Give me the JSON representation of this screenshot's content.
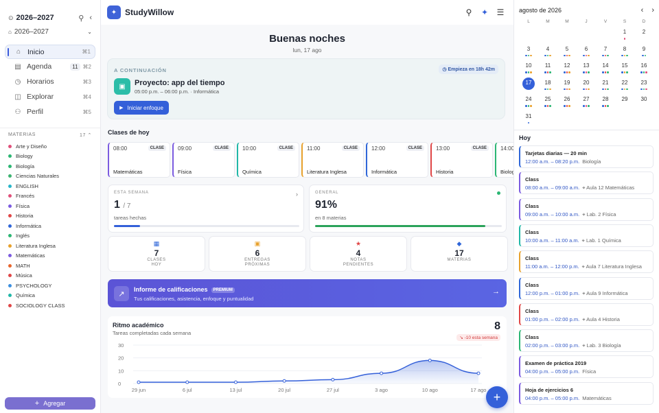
{
  "sidebar": {
    "year_title": "2026–2027",
    "year_select": "2026–2027",
    "nav": [
      {
        "label": "Inicio",
        "shortcut": "⌘1",
        "badge": ""
      },
      {
        "label": "Agenda",
        "shortcut": "⌘2",
        "badge": "11"
      },
      {
        "label": "Horarios",
        "shortcut": "⌘3",
        "badge": ""
      },
      {
        "label": "Explorar",
        "shortcut": "⌘4",
        "badge": ""
      },
      {
        "label": "Perfil",
        "shortcut": "⌘5",
        "badge": ""
      }
    ],
    "materias_label": "MATERIAS",
    "materias_count": "17",
    "materias": [
      {
        "name": "Arte y Diseño",
        "color": "#e0507a"
      },
      {
        "name": "Biology",
        "color": "#2bb673"
      },
      {
        "name": "Biología",
        "color": "#2bb673"
      },
      {
        "name": "Ciencias Naturales",
        "color": "#3cb371"
      },
      {
        "name": "ENGLISH",
        "color": "#27b5c9"
      },
      {
        "name": "Francés",
        "color": "#e0507a"
      },
      {
        "name": "Física",
        "color": "#7b5be0"
      },
      {
        "name": "Historia",
        "color": "#e04646"
      },
      {
        "name": "Informática",
        "color": "#2f66d8"
      },
      {
        "name": "Inglés",
        "color": "#2bb673"
      },
      {
        "name": "Literatura Inglesa",
        "color": "#e8a12c"
      },
      {
        "name": "Matemáticas",
        "color": "#7b5be0"
      },
      {
        "name": "MATH",
        "color": "#e8652c"
      },
      {
        "name": "Música",
        "color": "#e04646"
      },
      {
        "name": "PSYCHOLOGY",
        "color": "#3b8fe0"
      },
      {
        "name": "Química",
        "color": "#20b7a7"
      },
      {
        "name": "SOCIOLOGY CLASS",
        "color": "#e04646"
      }
    ],
    "add_label": "Agregar"
  },
  "header": {
    "brand": "StudyWillow"
  },
  "main": {
    "greeting": "Buenas noches",
    "date": "lun, 17 ago",
    "next": {
      "label": "A CONTINUACIÓN",
      "starts": "Empieza en 18h 42m",
      "title": "Proyecto: app del tiempo",
      "time": "05:00 p.m. – 06:00 p.m.",
      "subject": "Informática",
      "button": "Iniciar enfoque"
    },
    "classes_title": "Clases de hoy",
    "classes": [
      {
        "time": "08:00",
        "badge": "CLASE",
        "name": "Matemáticas",
        "color": "#7b5be0"
      },
      {
        "time": "09:00",
        "badge": "CLASE",
        "name": "Física",
        "color": "#7b5be0"
      },
      {
        "time": "10:00",
        "badge": "CLASE",
        "name": "Química",
        "color": "#20b7a7"
      },
      {
        "time": "11:00",
        "badge": "CLASE",
        "name": "Literatura Inglesa",
        "color": "#e8a12c"
      },
      {
        "time": "12:00",
        "badge": "CLASE",
        "name": "Informática",
        "color": "#2f66d8"
      },
      {
        "time": "13:00",
        "badge": "CLASE",
        "name": "Historia",
        "color": "#e04646"
      },
      {
        "time": "14:00",
        "badge": "CLASE",
        "name": "Biología",
        "color": "#2bb673"
      }
    ],
    "week": {
      "label": "ESTA SEMANA",
      "done": "1",
      "total": "/ 7",
      "sub": "tareas hechas",
      "progress": 0.14
    },
    "general": {
      "label": "GENERAL",
      "value": "91%",
      "sub": "en 8 materias",
      "progress": 0.91
    },
    "minis": [
      {
        "icon": "▦",
        "value": "7",
        "label1": "CLASES",
        "label2": "HOY",
        "color": "#2f66d8"
      },
      {
        "icon": "▣",
        "value": "6",
        "label1": "ENTREGAS",
        "label2": "PRÓXIMAS",
        "color": "#e8a12c"
      },
      {
        "icon": "★",
        "value": "4",
        "label1": "NOTAS",
        "label2": "PENDIENTES",
        "color": "#e04646"
      },
      {
        "icon": "◆",
        "value": "17",
        "label1": "MATERIAS",
        "label2": "",
        "color": "#2f66d8"
      }
    ],
    "promo": {
      "title": "Informe de calificaciones",
      "badge": "PREMIUM",
      "sub": "Tus calificaciones, asistencia, enfoque y puntualidad"
    },
    "rhythm": {
      "title": "Ritmo académico",
      "sub": "Tareas completadas cada semana",
      "value": "8",
      "badge": "↘ -10 esta semana"
    }
  },
  "chart_data": {
    "type": "area",
    "x": [
      "29 jun",
      "6 jul",
      "13 jul",
      "20 jul",
      "27 jul",
      "3 ago",
      "10 ago",
      "17 ago"
    ],
    "values": [
      1,
      1,
      1,
      2,
      3,
      8,
      18,
      8
    ],
    "ylim": [
      0,
      30
    ],
    "yticks": [
      "30",
      "20",
      "10",
      "0"
    ],
    "color": "#3460d9"
  },
  "calendar": {
    "month": "agosto de 2026",
    "weekdays": [
      "L",
      "M",
      "M",
      "J",
      "V",
      "S",
      "D"
    ],
    "selected": "17",
    "days": [
      {
        "d": "1",
        "dots": [
          "#e0507a"
        ]
      },
      {
        "d": "2",
        "dots": []
      },
      {
        "d": "3",
        "dots": [
          "#2f66d8",
          "#2bb673",
          "#e8a12c"
        ]
      },
      {
        "d": "4",
        "dots": [
          "#2f66d8",
          "#2bb673",
          "#e8a12c"
        ]
      },
      {
        "d": "5",
        "dots": [
          "#2f66d8",
          "#e04646",
          "#e8a12c"
        ]
      },
      {
        "d": "6",
        "dots": [
          "#2f66d8",
          "#e0507a",
          "#e8a12c"
        ]
      },
      {
        "d": "7",
        "dots": [
          "#2f66d8",
          "#e04646",
          "#2bb673"
        ]
      },
      {
        "d": "8",
        "dots": [
          "#2f66d8",
          "#e8a12c",
          "#2bb673"
        ]
      },
      {
        "d": "9",
        "dots": [
          "#2f66d8",
          "#2bb673"
        ]
      },
      {
        "d": "10",
        "dots": [
          "#2f66d8",
          "#2bb673",
          "#e8a12c"
        ]
      },
      {
        "d": "11",
        "dots": [
          "#2f66d8",
          "#e04646",
          "#2bb673"
        ]
      },
      {
        "d": "12",
        "dots": [
          "#2f66d8",
          "#e04646",
          "#e8a12c"
        ]
      },
      {
        "d": "13",
        "dots": [
          "#2f66d8",
          "#e0507a",
          "#2bb673"
        ]
      },
      {
        "d": "14",
        "dots": [
          "#2f66d8",
          "#e04646",
          "#2bb673"
        ]
      },
      {
        "d": "15",
        "dots": [
          "#2f66d8",
          "#e8a12c",
          "#2bb673"
        ]
      },
      {
        "d": "16",
        "dots": [
          "#2f66d8",
          "#2bb673",
          "#e0507a"
        ]
      },
      {
        "d": "17",
        "dots": []
      },
      {
        "d": "18",
        "dots": [
          "#2f66d8",
          "#2bb673",
          "#e8a12c"
        ]
      },
      {
        "d": "19",
        "dots": [
          "#2f66d8",
          "#e04646",
          "#e8a12c"
        ]
      },
      {
        "d": "20",
        "dots": [
          "#2f66d8",
          "#e0507a",
          "#e8a12c"
        ]
      },
      {
        "d": "21",
        "dots": [
          "#2f66d8",
          "#e04646",
          "#2bb673"
        ]
      },
      {
        "d": "22",
        "dots": [
          "#2f66d8",
          "#e8a12c",
          "#2bb673"
        ]
      },
      {
        "d": "23",
        "dots": [
          "#2f66d8",
          "#2bb673",
          "#e0507a"
        ]
      },
      {
        "d": "24",
        "dots": [
          "#2f66d8",
          "#2bb673",
          "#e8a12c"
        ]
      },
      {
        "d": "25",
        "dots": [
          "#2f66d8",
          "#e04646",
          "#2bb673"
        ]
      },
      {
        "d": "26",
        "dots": [
          "#2f66d8",
          "#e04646",
          "#e8a12c"
        ]
      },
      {
        "d": "27",
        "dots": [
          "#2f66d8",
          "#e0507a",
          "#2bb673"
        ]
      },
      {
        "d": "28",
        "dots": [
          "#2f66d8",
          "#e04646",
          "#2bb673"
        ]
      },
      {
        "d": "29",
        "dots": []
      },
      {
        "d": "30",
        "dots": []
      },
      {
        "d": "31",
        "dots": [
          "#2f66d8"
        ]
      }
    ]
  },
  "today": {
    "label": "Hoy",
    "events": [
      {
        "title": "Tarjetas diarias — 20 min",
        "time": "12:00 a.m. – 08:20 p.m.",
        "loc": "Biología",
        "color": "#2f66d8"
      },
      {
        "title": "Class",
        "time": "08:00 a.m. – 09:00 a.m.",
        "loc": "⌖ Aula 12  Matemáticas",
        "color": "#7b5be0"
      },
      {
        "title": "Class",
        "time": "09:00 a.m. – 10:00 a.m.",
        "loc": "⌖ Lab. 2  Física",
        "color": "#7b5be0"
      },
      {
        "title": "Class",
        "time": "10:00 a.m. – 11:00 a.m.",
        "loc": "⌖ Lab. 1  Química",
        "color": "#20b7a7"
      },
      {
        "title": "Class",
        "time": "11:00 a.m. – 12:00 p.m.",
        "loc": "⌖ Aula 7  Literatura Inglesa",
        "color": "#e8a12c"
      },
      {
        "title": "Class",
        "time": "12:00 p.m. – 01:00 p.m.",
        "loc": "⌖ Aula 9  Informática",
        "color": "#2f66d8"
      },
      {
        "title": "Class",
        "time": "01:00 p.m. – 02:00 p.m.",
        "loc": "⌖ Aula 4  Historia",
        "color": "#e04646"
      },
      {
        "title": "Class",
        "time": "02:00 p.m. – 03:00 p.m.",
        "loc": "⌖ Lab. 3  Biología",
        "color": "#2bb673"
      },
      {
        "title": "Examen de práctica 2019",
        "time": "04:00 p.m. – 05:00 p.m.",
        "loc": "Física",
        "color": "#7b5be0"
      },
      {
        "title": "Hoja de ejercicios 6",
        "time": "04:00 p.m. – 05:00 p.m.",
        "loc": "Matemáticas",
        "color": "#7b5be0"
      }
    ]
  }
}
